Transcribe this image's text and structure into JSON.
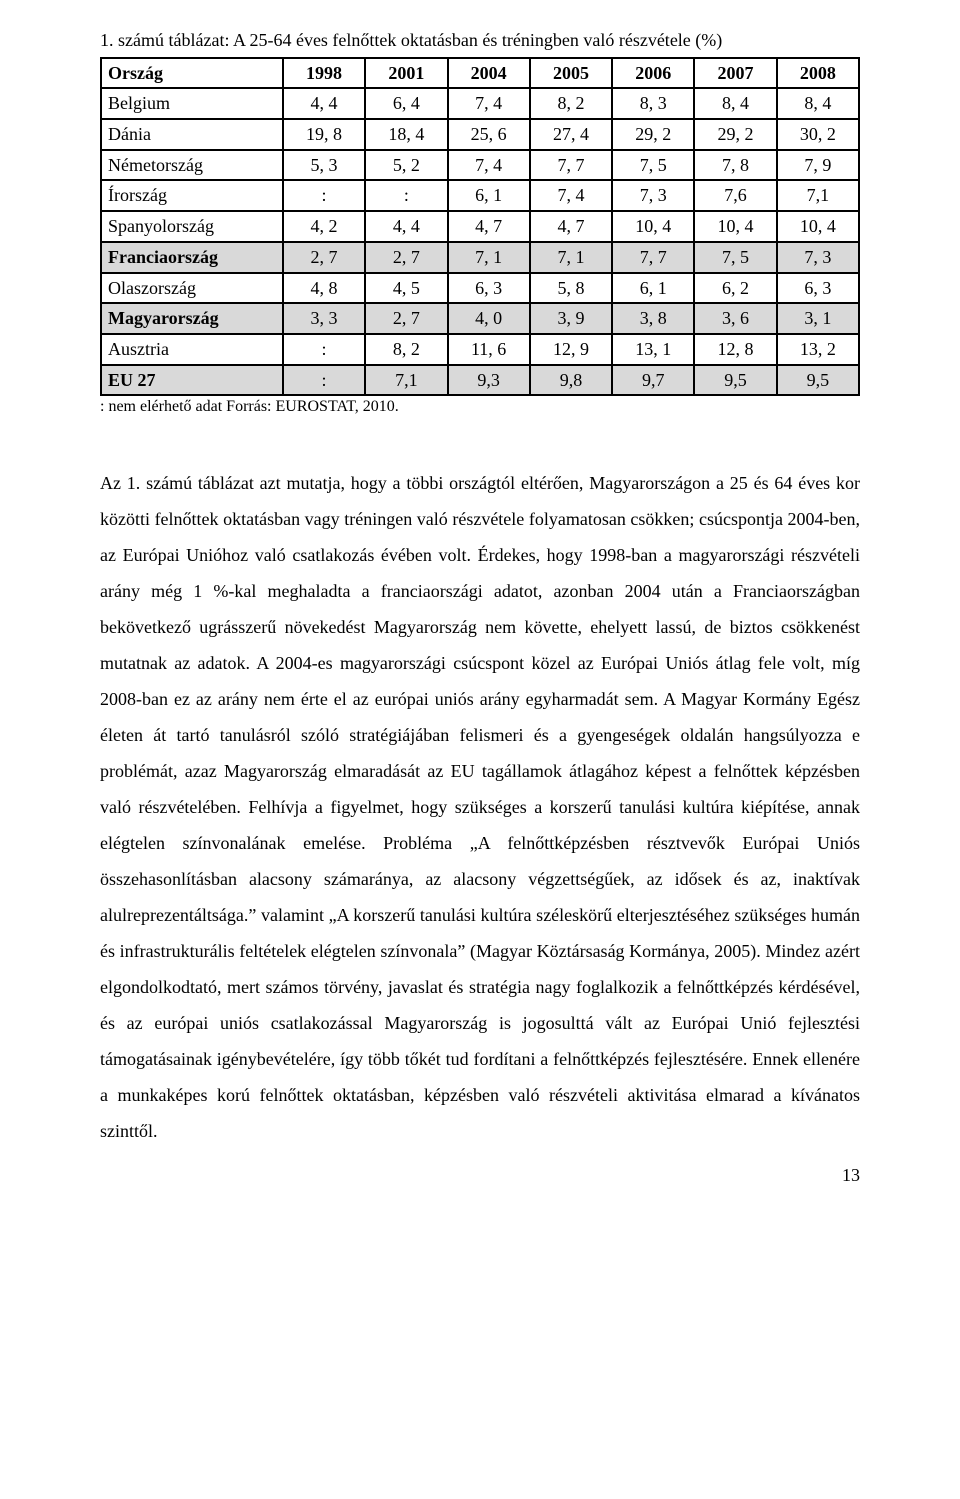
{
  "caption": "1. számú táblázat: A 25-64 éves felnőttek oktatásban és tréningben való részvétele (%)",
  "table": {
    "columns": [
      "Ország",
      "1998",
      "2001",
      "2004",
      "2005",
      "2006",
      "2007",
      "2008"
    ],
    "rows": [
      {
        "highlight": false,
        "cells": [
          "Belgium",
          "4, 4",
          "6, 4",
          "7, 4",
          "8, 2",
          "8, 3",
          "8, 4",
          "8, 4"
        ]
      },
      {
        "highlight": false,
        "cells": [
          "Dánia",
          "19, 8",
          "18, 4",
          "25, 6",
          "27, 4",
          "29, 2",
          "29, 2",
          "30, 2"
        ]
      },
      {
        "highlight": false,
        "cells": [
          "Németország",
          "5, 3",
          "5, 2",
          "7, 4",
          "7, 7",
          "7, 5",
          "7, 8",
          "7, 9"
        ]
      },
      {
        "highlight": false,
        "cells": [
          "Írország",
          ":",
          ":",
          "6, 1",
          "7, 4",
          "7, 3",
          "7,6",
          "7,1"
        ]
      },
      {
        "highlight": false,
        "cells": [
          "Spanyolország",
          "4, 2",
          "4, 4",
          "4, 7",
          "4, 7",
          "10, 4",
          "10, 4",
          "10, 4"
        ]
      },
      {
        "highlight": true,
        "cells": [
          "Franciaország",
          "2, 7",
          "2, 7",
          "7, 1",
          "7, 1",
          "7, 7",
          "7, 5",
          "7, 3"
        ]
      },
      {
        "highlight": false,
        "cells": [
          "Olaszország",
          "4, 8",
          "4, 5",
          "6, 3",
          "5, 8",
          "6, 1",
          "6, 2",
          "6, 3"
        ]
      },
      {
        "highlight": true,
        "cells": [
          "Magyarország",
          "3, 3",
          "2, 7",
          "4, 0",
          "3, 9",
          "3, 8",
          "3, 6",
          "3, 1"
        ]
      },
      {
        "highlight": false,
        "cells": [
          "Ausztria",
          ":",
          "8, 2",
          "11, 6",
          "12, 9",
          "13, 1",
          "12, 8",
          "13, 2"
        ]
      },
      {
        "highlight": true,
        "cells": [
          "EU 27",
          ":",
          "7,1",
          "9,3",
          "9,8",
          "9,7",
          "9,5",
          "9,5"
        ]
      }
    ]
  },
  "source_note": ": nem elérhető adat Forrás: EUROSTAT, 2010.",
  "body_paragraph": "Az 1. számú táblázat azt mutatja, hogy a többi országtól eltérően, Magyarországon a 25 és 64 éves kor közötti felnőttek oktatásban vagy tréningen való részvétele folyamatosan csökken; csúcspontja 2004-ben, az Európai Unióhoz való csatlakozás évében volt. Érdekes, hogy 1998-ban a magyarországi részvételi arány még 1 %-kal meghaladta a franciaországi adatot, azonban 2004 után a Franciaországban bekövetkező ugrásszerű növekedést Magyarország nem követte, ehelyett lassú, de biztos csökkenést mutatnak az adatok. A 2004-es magyarországi csúcspont közel az Európai Uniós átlag fele volt, míg 2008-ban ez az arány nem érte el az európai uniós arány egyharmadát sem. A Magyar Kormány Egész életen át tartó tanulásról szóló stratégiájában felismeri és a gyengeségek oldalán hangsúlyozza e problémát, azaz Magyarország elmaradását az EU tagállamok átlagához képest a felnőttek képzésben való részvételében. Felhívja a figyelmet, hogy szükséges a korszerű tanulási kultúra kiépítése, annak elégtelen színvonalának emelése. Probléma „A felnőttképzésben résztvevők Európai Uniós összehasonlításban alacsony számaránya, az alacsony végzettségűek, az idősek és az, inaktívak alulreprezentáltsága.” valamint „A korszerű tanulási kultúra széleskörű elterjesztéséhez szükséges humán és infrastrukturális feltételek elégtelen színvonala” (Magyar Köztársaság Kormánya, 2005). Mindez azért elgondolkodtató, mert számos törvény, javaslat és stratégia nagy foglalkozik a felnőttképzés kérdésével, és az európai uniós csatlakozással Magyarország is jogosulttá vált az Európai Unió fejlesztési támogatásainak igénybevételére, így több tőkét tud fordítani a felnőttképzés fejlesztésére. Ennek ellenére a munkaképes korú felnőttek oktatásban, képzésben való részvételi aktivitása elmarad a kívánatos szinttől.",
  "page_number": "13"
}
